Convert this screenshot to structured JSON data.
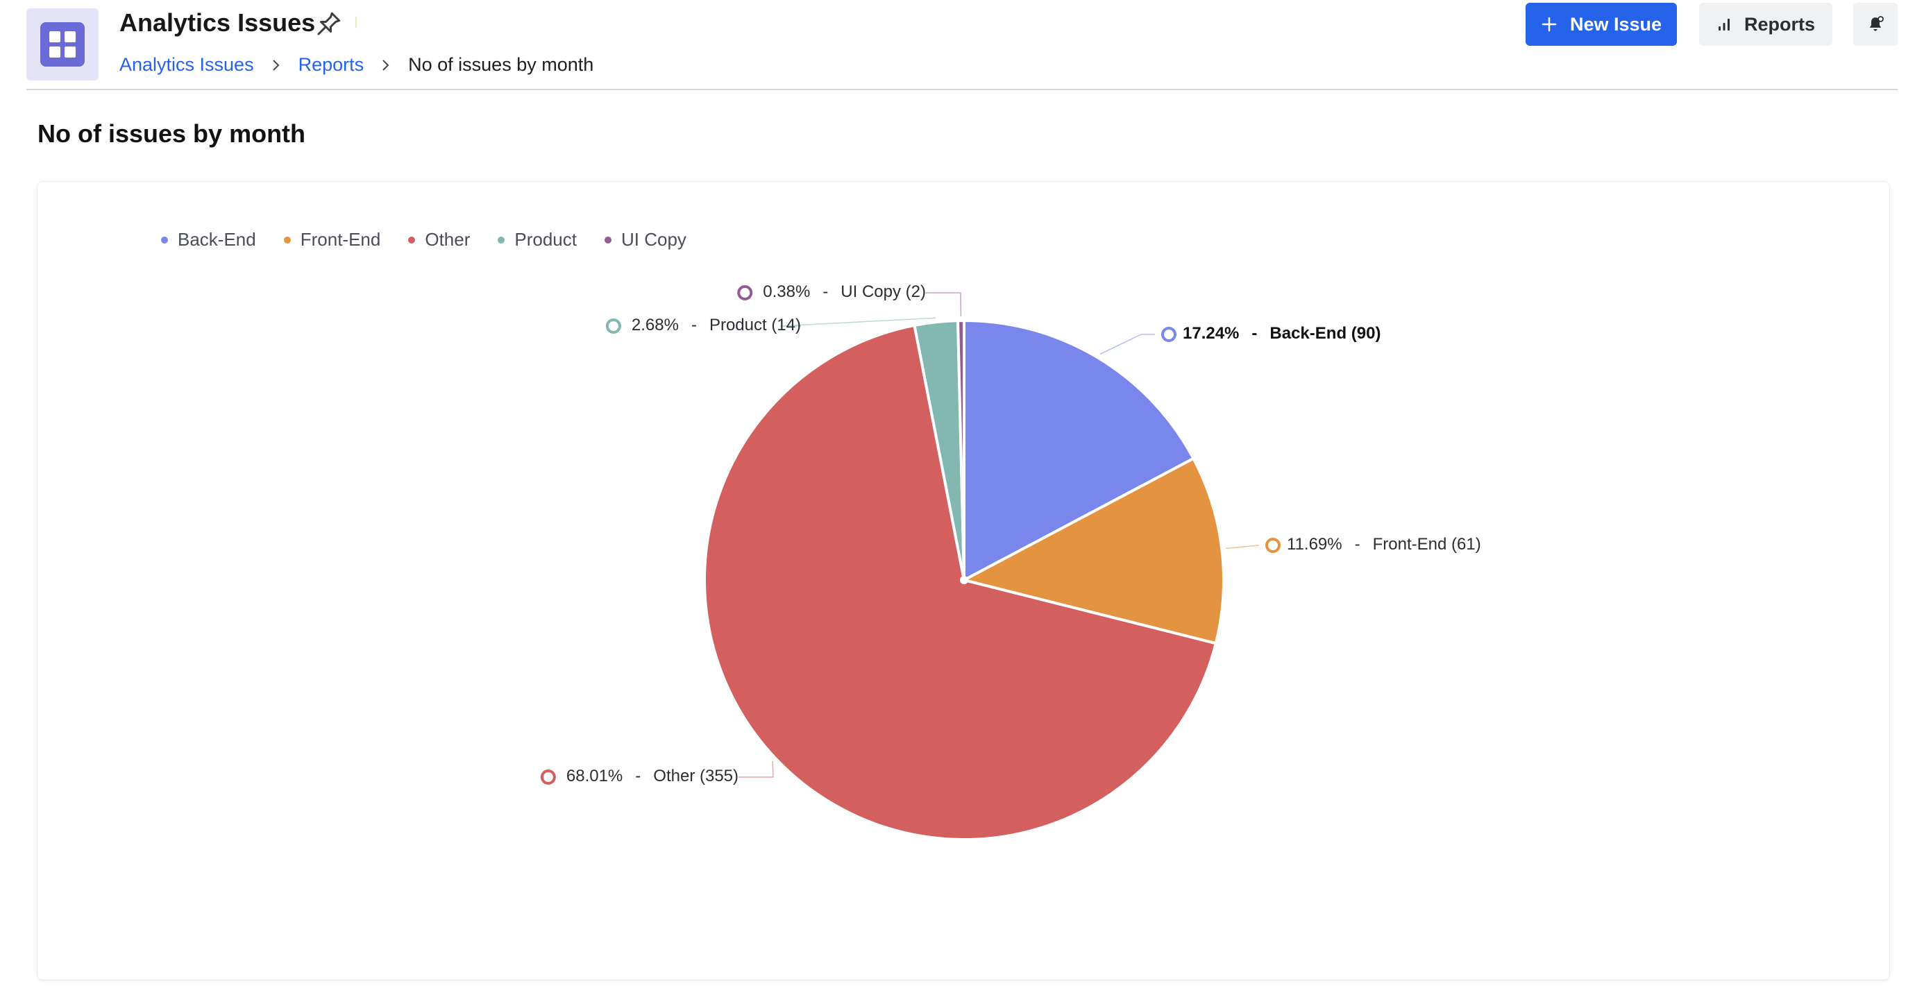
{
  "header": {
    "title": "Analytics Issues",
    "breadcrumb": [
      {
        "label": "Analytics Issues"
      },
      {
        "label": "Reports"
      },
      {
        "label": "No of issues by month"
      }
    ],
    "buttons": {
      "new_issue": "New Issue",
      "reports": "Reports"
    }
  },
  "page": {
    "title": "No of issues by month"
  },
  "chart_data": {
    "type": "pie",
    "title": "",
    "legend_position": "top-left",
    "series": [
      {
        "name": "Back-End",
        "value": 90,
        "percent": "17.24%",
        "color": "#7986eb",
        "label": "Back-End (90)"
      },
      {
        "name": "Front-End",
        "value": 61,
        "percent": "11.69%",
        "color": "#e49441",
        "label": "Front-End (61)"
      },
      {
        "name": "Other",
        "value": 355,
        "percent": "68.01%",
        "color": "#d35f5f",
        "label": "Other (355)"
      },
      {
        "name": "Product",
        "value": 14,
        "percent": "2.68%",
        "color": "#82b8b0",
        "label": "Product (14)"
      },
      {
        "name": "UI Copy",
        "value": 2,
        "percent": "0.38%",
        "color": "#925b91",
        "label": "UI Copy (2)"
      }
    ]
  }
}
